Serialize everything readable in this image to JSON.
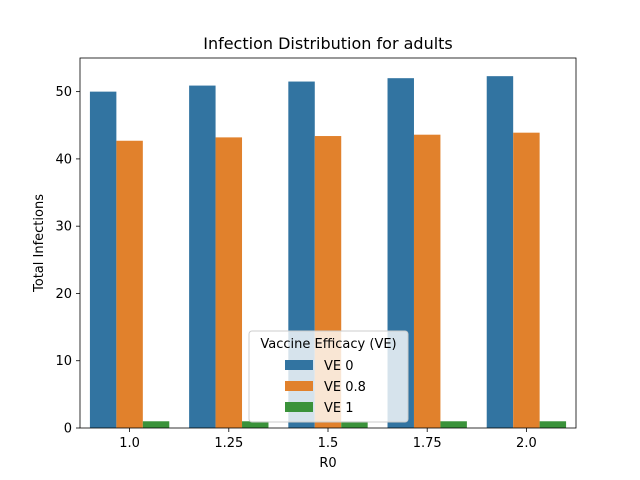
{
  "chart_data": {
    "type": "bar",
    "title": "Infection Distribution for adults",
    "xlabel": "R0",
    "ylabel": "Total Infections",
    "categories": [
      "1.0",
      "1.25",
      "1.5",
      "1.75",
      "2.0"
    ],
    "ylim": [
      0,
      55
    ],
    "yticks": [
      0,
      10,
      20,
      30,
      40,
      50
    ],
    "grid": false,
    "legend": {
      "title": "Vaccine Efficacy (VE)",
      "placement": "lower-center"
    },
    "series": [
      {
        "name": "VE 0",
        "color": "#3274a1",
        "values": [
          50.0,
          50.9,
          51.5,
          52.0,
          52.3
        ]
      },
      {
        "name": "VE 0.8",
        "color": "#e1812c",
        "values": [
          42.7,
          43.2,
          43.4,
          43.6,
          43.9
        ]
      },
      {
        "name": "VE 1",
        "color": "#3a923a",
        "values": [
          1.0,
          1.0,
          1.0,
          1.0,
          1.0
        ]
      }
    ]
  }
}
